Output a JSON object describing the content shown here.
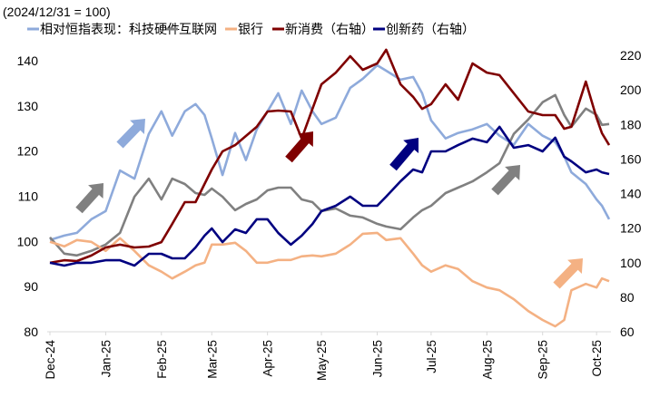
{
  "chart_data": {
    "type": "line",
    "subtitle": "(2024/12/31 = 100)",
    "legend_position": "top",
    "grid": false,
    "left_axis": {
      "ylim": [
        80,
        140
      ],
      "ticks": [
        "80",
        "90",
        "100",
        "110",
        "120",
        "130",
        "140"
      ]
    },
    "right_axis": {
      "ylim": [
        60,
        220
      ],
      "ticks": [
        "60",
        "80",
        "100",
        "120",
        "140",
        "160",
        "180",
        "200",
        "220"
      ]
    },
    "x_ticks": [
      {
        "date": "2024-12-01",
        "label": "Dec-24"
      },
      {
        "date": "2025-01-01",
        "label": "Jan-25"
      },
      {
        "date": "2025-02-01",
        "label": "Feb-25"
      },
      {
        "date": "2025-03-01",
        "label": "Mar-25"
      },
      {
        "date": "2025-04-01",
        "label": "Apr-25"
      },
      {
        "date": "2025-05-01",
        "label": "May-25"
      },
      {
        "date": "2025-06-01",
        "label": "Jun-25"
      },
      {
        "date": "2025-07-01",
        "label": "Jul-25"
      },
      {
        "date": "2025-08-01",
        "label": "Aug-25"
      },
      {
        "date": "2025-09-01",
        "label": "Sep-25"
      },
      {
        "date": "2025-10-01",
        "label": "Oct-25"
      }
    ],
    "x_range": [
      "2024-12-01",
      "2025-10-08"
    ],
    "x": [
      "2024-12-01",
      "2024-12-09",
      "2024-12-16",
      "2024-12-24",
      "2025-01-01",
      "2025-01-09",
      "2025-01-17",
      "2025-01-25",
      "2025-02-01",
      "2025-02-07",
      "2025-02-14",
      "2025-02-20",
      "2025-02-25",
      "2025-03-01",
      "2025-03-07",
      "2025-03-14",
      "2025-03-20",
      "2025-03-26",
      "2025-04-01",
      "2025-04-07",
      "2025-04-14",
      "2025-04-20",
      "2025-04-26",
      "2025-05-01",
      "2025-05-09",
      "2025-05-17",
      "2025-05-24",
      "2025-06-01",
      "2025-06-06",
      "2025-06-14",
      "2025-06-21",
      "2025-06-26",
      "2025-07-01",
      "2025-07-09",
      "2025-07-16",
      "2025-07-24",
      "2025-08-01",
      "2025-08-08",
      "2025-08-16",
      "2025-08-24",
      "2025-09-01",
      "2025-09-08",
      "2025-09-13",
      "2025-09-17",
      "2025-09-25",
      "2025-10-01",
      "2025-10-04",
      "2025-10-08"
    ],
    "series": [
      {
        "name": "相对恒指表现：科技硬件",
        "axis": "left",
        "color": "#8eaadb",
        "values": [
          100.3,
          101.3,
          101.9,
          104.9,
          106.7,
          115.7,
          113.9,
          123.8,
          128.8,
          123.4,
          128.8,
          130.4,
          128,
          122.8,
          114.7,
          124,
          118,
          124.8,
          128.8,
          132.8,
          126,
          133.4,
          128.8,
          126,
          127.4,
          134,
          136,
          139,
          137.8,
          135.8,
          136.4,
          132.8,
          126.8,
          122.8,
          124,
          124.8,
          126,
          123.4,
          121.4,
          126,
          123.4,
          122,
          118.8,
          115.3,
          112.7,
          109.3,
          107.9,
          104.9
        ]
      },
      {
        "name": "互联网",
        "axis": "left",
        "color": "#808080",
        "values": [
          100.9,
          97.3,
          96.9,
          97.9,
          99.3,
          101.9,
          109.9,
          113.9,
          109.3,
          113.9,
          112.7,
          110.7,
          110.3,
          111.7,
          109.9,
          106.9,
          108.3,
          109.3,
          111.3,
          111.9,
          111.9,
          109.3,
          108.7,
          106.7,
          107.3,
          105.7,
          105.3,
          103.9,
          103.3,
          102.7,
          105.3,
          106.9,
          107.9,
          110.7,
          111.9,
          113.3,
          115.3,
          117.3,
          123.8,
          127,
          130.8,
          132.4,
          128,
          125.4,
          129.4,
          128,
          125.8,
          126
        ]
      },
      {
        "name": "银行",
        "axis": "left",
        "color": "#f4b183",
        "values": [
          99.9,
          98.9,
          100.3,
          99.9,
          97.9,
          100.7,
          97.9,
          94.7,
          93.3,
          91.8,
          93.3,
          94.7,
          95.3,
          99.3,
          99.3,
          99.7,
          97.9,
          95.3,
          95.3,
          95.9,
          95.9,
          96.7,
          96.9,
          96.7,
          97.3,
          99.3,
          101.7,
          101.9,
          100.3,
          100.7,
          97.3,
          94.7,
          93.3,
          94.7,
          93.9,
          91.2,
          89.8,
          89.2,
          87.2,
          84.6,
          82.6,
          81.2,
          82.6,
          89.2,
          90.6,
          89.8,
          91.8,
          91.2
        ]
      },
      {
        "name": "新消费（右轴）",
        "axis": "right",
        "color": "#7f0000",
        "values": [
          99.9,
          101.4,
          100.9,
          104.1,
          108.8,
          110.4,
          108.8,
          109.3,
          111.9,
          122.4,
          135,
          135,
          145.5,
          153.9,
          164.4,
          168,
          173.3,
          178.6,
          187.5,
          188,
          187.5,
          171.8,
          189,
          203.2,
          210,
          219.5,
          211.6,
          215.3,
          223.2,
          203.2,
          195.9,
          189,
          191.7,
          203.2,
          194.3,
          215.3,
          210,
          208.5,
          198,
          187.5,
          185.4,
          185.4,
          177.5,
          178.6,
          204.8,
          183.8,
          174.9,
          168
        ]
      },
      {
        "name": "创新药（右轴）",
        "axis": "right",
        "color": "#000080",
        "values": [
          99.9,
          98.3,
          99.9,
          99.9,
          101.4,
          101.4,
          98.3,
          105.1,
          105.1,
          102.5,
          102.5,
          108.8,
          115.6,
          119.8,
          111.9,
          119.3,
          117.2,
          125.1,
          125.1,
          117.2,
          110.4,
          115.6,
          122.4,
          129.8,
          132.9,
          138.2,
          132.9,
          132.9,
          138.2,
          147.1,
          153.9,
          152.3,
          164.4,
          164.4,
          168,
          171.8,
          169.7,
          178.6,
          166.5,
          168,
          164.4,
          172.3,
          161.3,
          158.6,
          152.3,
          153.9,
          152.3,
          151.3
        ]
      }
    ],
    "annotations": [
      {
        "type": "arrow",
        "color": "#8eaadb",
        "direction": "up-right"
      },
      {
        "type": "arrow",
        "color": "#808080",
        "direction": "up-right"
      },
      {
        "type": "arrow",
        "color": "#7f0000",
        "direction": "up-right"
      },
      {
        "type": "arrow",
        "color": "#000080",
        "direction": "up-right"
      },
      {
        "type": "arrow",
        "color": "#808080",
        "direction": "up-right"
      },
      {
        "type": "arrow",
        "color": "#f4b183",
        "direction": "up-right"
      }
    ]
  }
}
